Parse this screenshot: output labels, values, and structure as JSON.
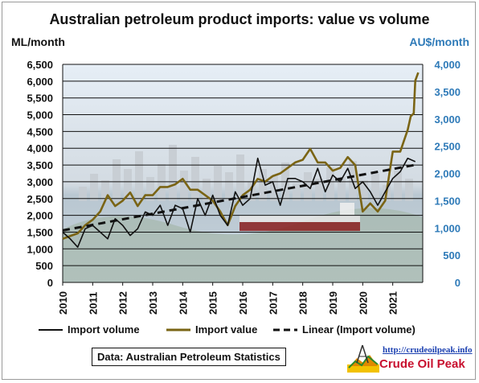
{
  "chart_data": {
    "type": "line",
    "title": "Australian petroleum product imports: value vs volume",
    "y_left_unit": "ML/month",
    "y_right_unit": "AU$/month",
    "y_left_range": [
      0,
      6500
    ],
    "y_left_ticks": [
      "0",
      "500",
      "1,000",
      "1,500",
      "2,000",
      "2,500",
      "3,000",
      "3,500",
      "4,000",
      "4,500",
      "5,000",
      "5,500",
      "6,000",
      "6,500"
    ],
    "y_right_range": [
      0,
      4000
    ],
    "y_right_ticks": [
      "0",
      "500",
      "1,000",
      "1,500",
      "2,000",
      "2,500",
      "3,000",
      "3,500",
      "4,000"
    ],
    "x_range": [
      2010,
      2022
    ],
    "x_ticks": [
      "2010",
      "2011",
      "2012",
      "2013",
      "2014",
      "2015",
      "2016",
      "2017",
      "2018",
      "2019",
      "2020",
      "2021"
    ],
    "grid": "horizontal",
    "legend_position": "bottom",
    "colors": {
      "volume": "#111111",
      "value": "#7a6414",
      "right_axis": "#2e7ab8"
    },
    "series": [
      {
        "name": "Import volume",
        "axis": "left",
        "x": [
          2010.0,
          2010.25,
          2010.5,
          2010.75,
          2011.0,
          2011.25,
          2011.5,
          2011.75,
          2012.0,
          2012.25,
          2012.5,
          2012.75,
          2013.0,
          2013.25,
          2013.5,
          2013.75,
          2014.0,
          2014.25,
          2014.5,
          2014.75,
          2015.0,
          2015.25,
          2015.5,
          2015.75,
          2016.0,
          2016.25,
          2016.5,
          2016.75,
          2017.0,
          2017.25,
          2017.5,
          2017.75,
          2018.0,
          2018.25,
          2018.5,
          2018.75,
          2019.0,
          2019.25,
          2019.5,
          2019.75,
          2020.0,
          2020.25,
          2020.5,
          2020.75,
          2021.0,
          2021.25,
          2021.5,
          2021.75
        ],
        "values": [
          1500,
          1300,
          1050,
          1600,
          1700,
          1500,
          1300,
          1900,
          1700,
          1400,
          1600,
          2100,
          2000,
          2300,
          1700,
          2300,
          2200,
          1500,
          2500,
          2000,
          2600,
          2000,
          1700,
          2700,
          2300,
          2500,
          3700,
          2900,
          3000,
          2300,
          3100,
          3100,
          3000,
          2800,
          3400,
          2700,
          3200,
          3000,
          3400,
          2800,
          3000,
          2700,
          2300,
          2700,
          3100,
          3300,
          3700,
          3600
        ]
      },
      {
        "name": "Import value",
        "axis": "right",
        "x": [
          2010.0,
          2010.25,
          2010.5,
          2010.75,
          2011.0,
          2011.25,
          2011.5,
          2011.75,
          2012.0,
          2012.25,
          2012.5,
          2012.75,
          2013.0,
          2013.25,
          2013.5,
          2013.75,
          2014.0,
          2014.25,
          2014.5,
          2014.75,
          2015.0,
          2015.25,
          2015.5,
          2015.75,
          2016.0,
          2016.25,
          2016.5,
          2016.75,
          2017.0,
          2017.25,
          2017.5,
          2017.75,
          2018.0,
          2018.25,
          2018.5,
          2018.75,
          2019.0,
          2019.25,
          2019.5,
          2019.75,
          2020.0,
          2020.25,
          2020.5,
          2020.75,
          2021.0,
          2021.25,
          2021.5,
          2021.6,
          2021.7,
          2021.75,
          2021.85
        ],
        "values": [
          800,
          850,
          900,
          1050,
          1150,
          1300,
          1600,
          1400,
          1500,
          1650,
          1400,
          1600,
          1600,
          1750,
          1750,
          1800,
          1900,
          1700,
          1700,
          1600,
          1500,
          1300,
          1050,
          1400,
          1600,
          1700,
          1900,
          1850,
          1950,
          2000,
          2100,
          2200,
          2250,
          2450,
          2200,
          2200,
          2050,
          2100,
          2300,
          2150,
          1300,
          1450,
          1300,
          1500,
          2400,
          2400,
          2800,
          3050,
          3100,
          3700,
          3850
        ]
      },
      {
        "name": "Linear (Import volume)",
        "axis": "left",
        "style": "dashed",
        "x": [
          2010.0,
          2021.85
        ],
        "values": [
          1550,
          3520
        ]
      }
    ],
    "source": "Data: Australian Petroleum Statistics"
  },
  "logo": {
    "url": "http://crudeoilpeak.info",
    "name": "Crude Oil Peak"
  }
}
